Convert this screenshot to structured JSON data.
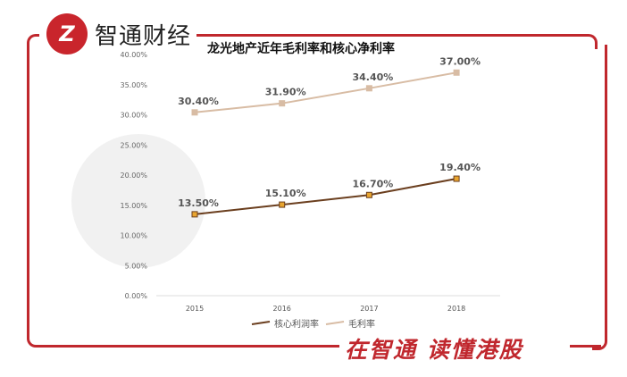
{
  "brand": {
    "logo_text": "Z",
    "name": "智通财经",
    "slogan": "在智通 读懂港股",
    "watermark": "智通财经"
  },
  "colors": {
    "frame": "#c0272d",
    "core_net": "#6b3f1f",
    "gross": "#d8bca4"
  },
  "chart_data": {
    "type": "line",
    "title": "龙光地产近年毛利率和核心净利率",
    "categories": [
      "2015",
      "2016",
      "2017",
      "2018"
    ],
    "ylim": [
      0,
      40
    ],
    "yticks": [
      "0.00%",
      "5.00%",
      "10.00%",
      "15.00%",
      "20.00%",
      "25.00%",
      "30.00%",
      "35.00%",
      "40.00%"
    ],
    "legend_position": "bottom",
    "series": [
      {
        "name": "核心利润率",
        "values": [
          13.5,
          15.1,
          16.7,
          19.4
        ],
        "labels": [
          "13.50%",
          "15.10%",
          "16.70%",
          "19.40%"
        ]
      },
      {
        "name": "毛利率",
        "values": [
          30.4,
          31.9,
          34.4,
          37.0
        ],
        "labels": [
          "30.40%",
          "31.90%",
          "34.40%",
          "37.00%"
        ]
      }
    ]
  }
}
